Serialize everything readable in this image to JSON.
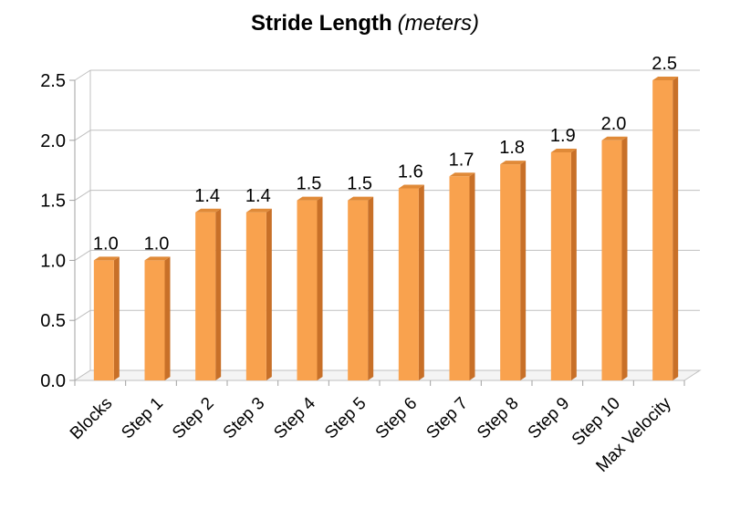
{
  "chart_data": {
    "type": "bar",
    "title": "Stride Length",
    "title_unit": "(meters)",
    "xlabel": "",
    "ylabel": "",
    "categories": [
      "Blocks",
      "Step 1",
      "Step 2",
      "Step 3",
      "Step 4",
      "Step 5",
      "Step 6",
      "Step 7",
      "Step 8",
      "Step 9",
      "Step 10",
      "Max Velocity"
    ],
    "values": [
      1.0,
      1.0,
      1.4,
      1.4,
      1.5,
      1.5,
      1.6,
      1.7,
      1.8,
      1.9,
      2.0,
      2.5
    ],
    "value_labels": [
      "1.0",
      "1.0",
      "1.4",
      "1.4",
      "1.5",
      "1.5",
      "1.6",
      "1.7",
      "1.8",
      "1.9",
      "2.0",
      "2.5"
    ],
    "yticks": [
      0.0,
      0.5,
      1.0,
      1.5,
      2.0,
      2.5
    ],
    "ytick_labels": [
      "0.0",
      "0.5",
      "1.0",
      "1.5",
      "2.0",
      "2.5"
    ],
    "ylim": [
      0,
      2.5
    ],
    "grid": true,
    "legend": "none",
    "style": "3d-column",
    "colors": {
      "bar_front": "#F9A24E",
      "bar_side": "#C87028",
      "bar_top": "#E08A38",
      "grid": "#C0C0C0",
      "axis": "#A0A0A0"
    }
  }
}
